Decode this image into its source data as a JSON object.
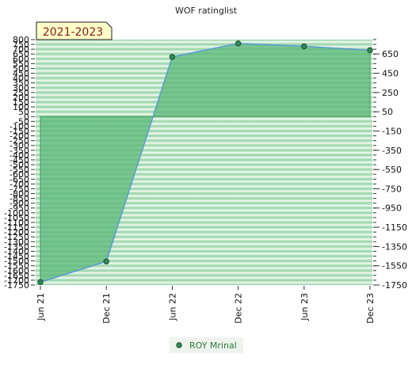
{
  "chart_data": {
    "type": "area",
    "title": "WOF ratinglist",
    "badge": "2021-2023",
    "x": [
      "Jun 21",
      "Dec 21",
      "Jun 22",
      "Dec 22",
      "Jun 23",
      "Dec 23"
    ],
    "series": [
      {
        "name": "ROY Mrinal",
        "values": [
          -1720,
          -1505,
          620,
          760,
          730,
          690
        ]
      }
    ],
    "left_axis": {
      "ylim": [
        -1750,
        800
      ],
      "ticks": [
        "800",
        "750",
        "700",
        "650",
        "600",
        "550",
        "500",
        "450",
        "400",
        "350",
        "300",
        "250",
        "200",
        "150",
        "100",
        "50",
        "0",
        "-50",
        "-100",
        "-150",
        "-200",
        "-250",
        "-300",
        "-350",
        "-400",
        "-450",
        "-500",
        "-550",
        "-600",
        "-650",
        "-700",
        "-750",
        "-800",
        "-850",
        "-900",
        "-950",
        "-1000",
        "-1050",
        "-1100",
        "-1150",
        "-1200",
        "-1250",
        "-1300",
        "-1350",
        "-1400",
        "-1450",
        "-1500",
        "-1550",
        "-1600",
        "-1650",
        "-1700",
        "-1750"
      ]
    },
    "right_axis": {
      "ticks": [
        650,
        450,
        250,
        50,
        -150,
        -350,
        -550,
        -750,
        -950,
        -1150,
        -1350,
        -1550,
        -1750
      ]
    },
    "grid": true,
    "legend_position": "bottom-center",
    "colors": {
      "area_fill": "#5cb87a",
      "line": "#5b9bd5",
      "marker": "#2e8b57",
      "band_dark": "#8fd0a0",
      "band_light": "#eef8f0",
      "badge_bg": "#ffffc8",
      "badge_text": "#8b1a1a"
    }
  }
}
